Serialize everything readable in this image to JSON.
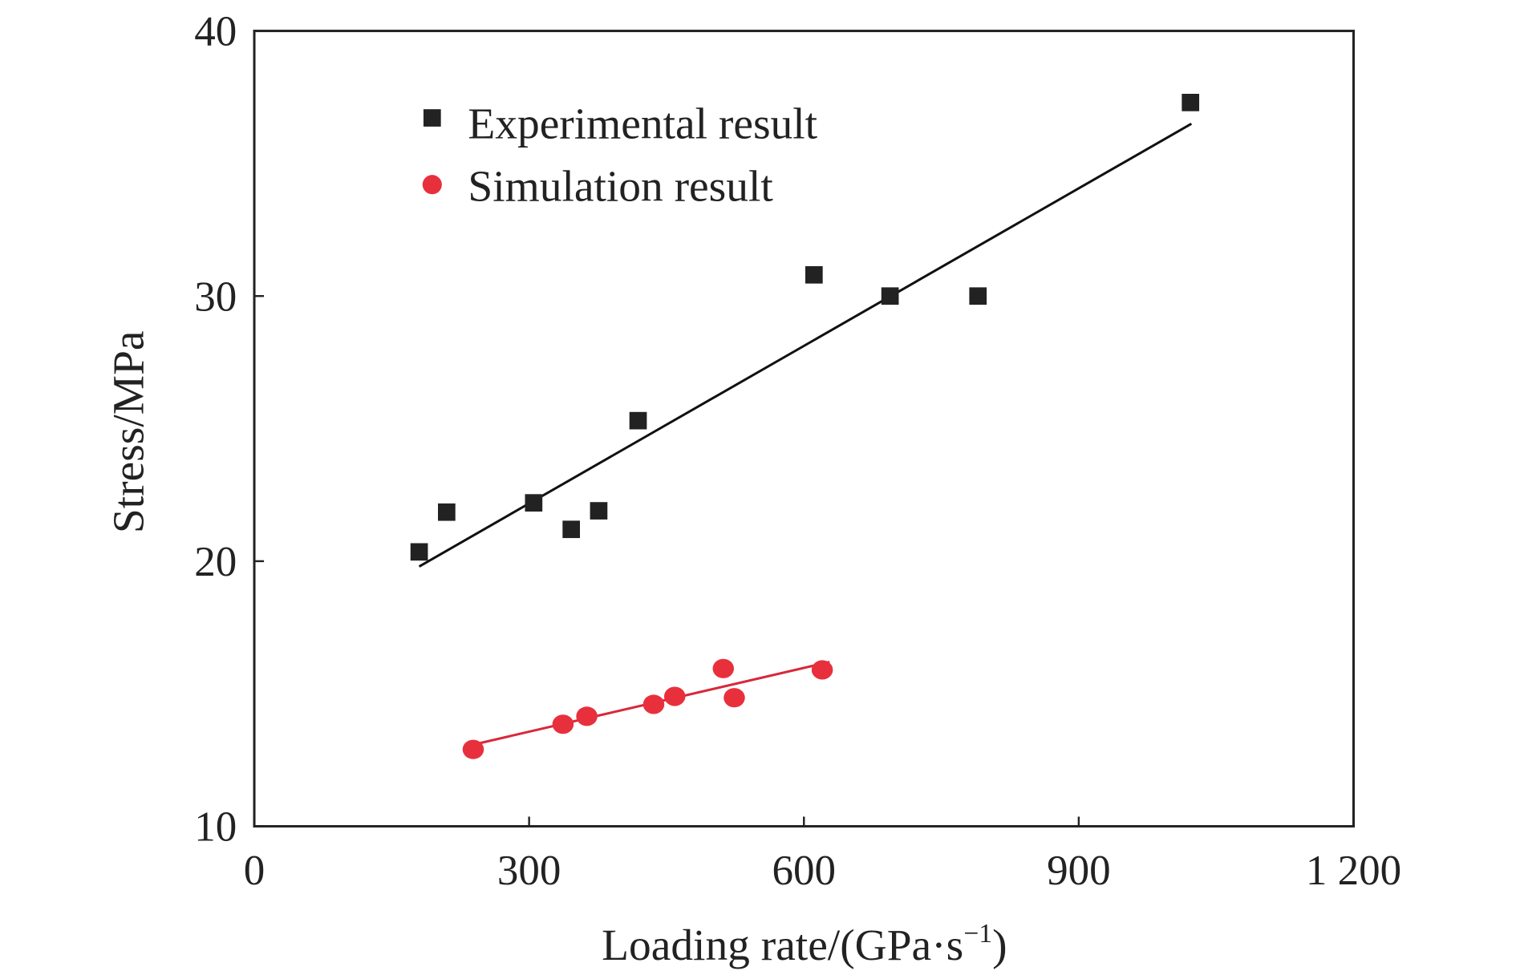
{
  "chart_data": {
    "type": "scatter",
    "title": "",
    "xlabel": "Loading rate/(GPa·s",
    "xlabel_sup": "−1",
    "xlabel_end": ")",
    "ylabel": "Stress/MPa",
    "xlim": [
      0,
      1200
    ],
    "ylim": [
      10,
      40
    ],
    "xticks": [
      0,
      300,
      600,
      900,
      1200
    ],
    "xtick_labels": [
      "0",
      "300",
      "600",
      "900",
      "1 200"
    ],
    "yticks": [
      10,
      20,
      30,
      40
    ],
    "ytick_labels": [
      "10",
      "20",
      "30",
      "40"
    ],
    "grid": false,
    "legend_position": "top-left",
    "series": [
      {
        "name": "Experimental result",
        "marker": "square",
        "color": "#222222",
        "x": [
          180,
          210,
          305,
          346,
          376,
          419,
          611,
          694,
          790,
          1022
        ],
        "y": [
          20.35,
          21.85,
          22.2,
          21.2,
          21.9,
          25.3,
          30.8,
          30.0,
          30.0,
          37.3
        ],
        "fit": {
          "x": [
            180,
            1023
          ],
          "y": [
            19.8,
            36.5
          ],
          "color": "#111111"
        }
      },
      {
        "name": "Simulation result",
        "marker": "circle",
        "color": "#e8303c",
        "x": [
          239,
          337,
          363,
          436,
          459,
          512,
          524,
          620
        ],
        "y": [
          12.9,
          13.85,
          14.15,
          14.6,
          14.9,
          15.95,
          14.85,
          15.9
        ],
        "fit": {
          "x": [
            229,
            628
          ],
          "y": [
            13.0,
            16.2
          ],
          "color": "#d8283a"
        }
      }
    ]
  }
}
